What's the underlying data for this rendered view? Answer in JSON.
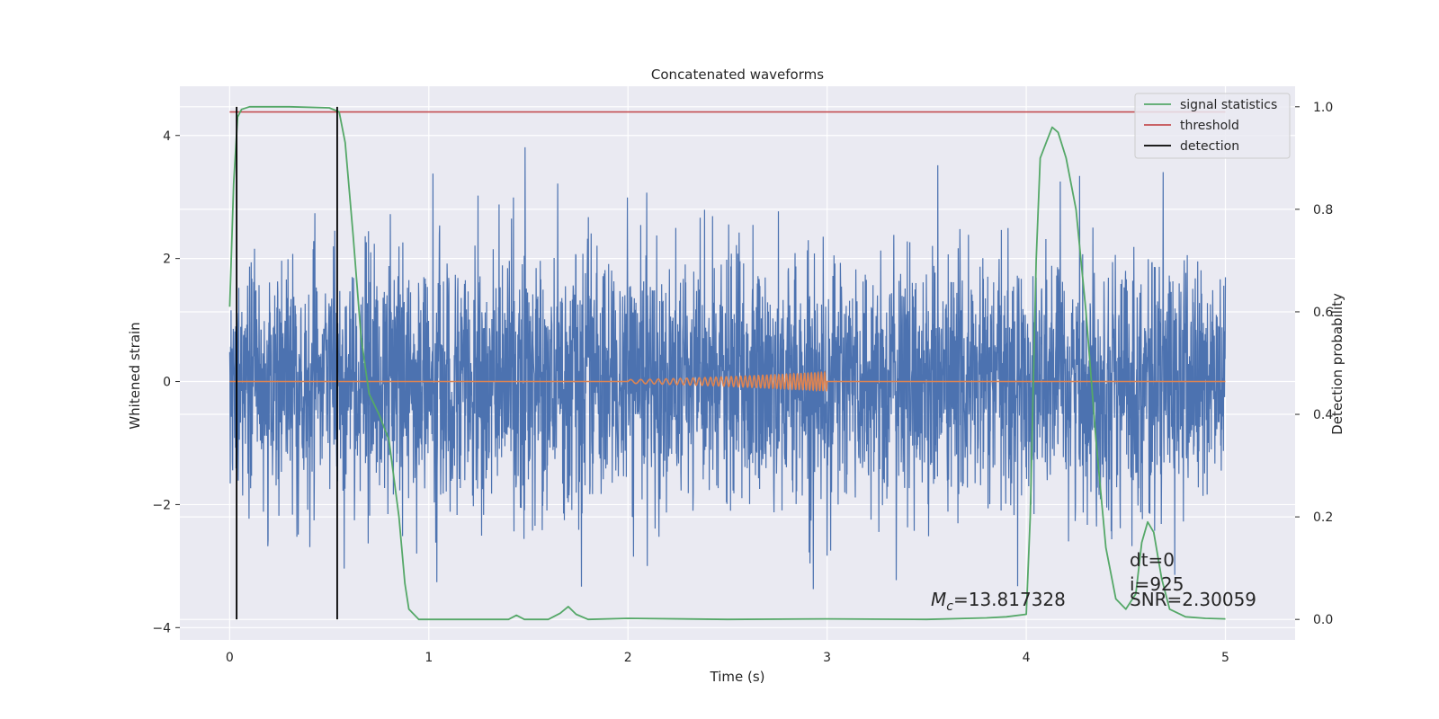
{
  "chart_data": {
    "type": "line",
    "title": "Concatenated waveforms",
    "xlabel": "Time (s)",
    "ylabel": "Whitened strain",
    "ylabel_right": "Detection probability",
    "xlim": [
      -0.25,
      5.35
    ],
    "ylim": [
      -4.2,
      4.8
    ],
    "ylim_right": [
      -0.04,
      1.04
    ],
    "xticks": [
      0,
      1,
      2,
      3,
      4,
      5
    ],
    "yticks": [
      -4,
      -2,
      0,
      2,
      4
    ],
    "yticks_right": [
      0.0,
      0.2,
      0.4,
      0.6,
      0.8,
      1.0
    ],
    "ytick_labels": [
      "−4",
      "−2",
      "0",
      "2",
      "4"
    ],
    "ytick_labels_right": [
      "0.0",
      "0.2",
      "0.4",
      "0.6",
      "0.8",
      "1.0"
    ],
    "grid": true,
    "legend_position": "top-right",
    "colors": {
      "strain": "#4c72b0",
      "template": "#dd8452",
      "statistics": "#55a868",
      "threshold": "#c44e52",
      "detection": "#000000",
      "background": "#eaeaf2",
      "grid": "#ffffff"
    },
    "series": [
      {
        "name": "",
        "axis": "left",
        "kind": "noise",
        "x_range": [
          0,
          5
        ],
        "approx_std": 1.0,
        "approx_range": [
          -3.85,
          4.4
        ]
      },
      {
        "name": "",
        "axis": "left",
        "kind": "chirp",
        "x_range": [
          2.0,
          3.0
        ],
        "amplitude_range": [
          0.03,
          0.15
        ]
      },
      {
        "name": "signal statistics",
        "axis": "right",
        "x": [
          0.0,
          0.02,
          0.04,
          0.06,
          0.1,
          0.3,
          0.5,
          0.55,
          0.58,
          0.62,
          0.66,
          0.7,
          0.75,
          0.8,
          0.85,
          0.88,
          0.9,
          0.95,
          1.0,
          1.4,
          1.44,
          1.48,
          1.6,
          1.66,
          1.7,
          1.74,
          1.8,
          2.0,
          2.5,
          3.0,
          3.5,
          3.8,
          3.9,
          4.0,
          4.02,
          4.05,
          4.07,
          4.1,
          4.13,
          4.16,
          4.2,
          4.25,
          4.3,
          4.35,
          4.4,
          4.45,
          4.5,
          4.55,
          4.58,
          4.61,
          4.64,
          4.68,
          4.72,
          4.8,
          4.9,
          5.0
        ],
        "y": [
          0.61,
          0.85,
          0.98,
          0.995,
          1.0,
          1.0,
          0.998,
          0.99,
          0.93,
          0.75,
          0.55,
          0.44,
          0.4,
          0.35,
          0.2,
          0.07,
          0.02,
          0.0,
          0.0,
          0.0,
          0.008,
          0.0,
          0.0,
          0.012,
          0.025,
          0.01,
          0.0,
          0.002,
          0.0,
          0.001,
          0.0,
          0.003,
          0.005,
          0.01,
          0.2,
          0.7,
          0.9,
          0.93,
          0.96,
          0.95,
          0.9,
          0.8,
          0.6,
          0.35,
          0.14,
          0.04,
          0.02,
          0.05,
          0.15,
          0.19,
          0.17,
          0.08,
          0.02,
          0.005,
          0.002,
          0.001
        ]
      },
      {
        "name": "threshold",
        "axis": "right",
        "x": [
          0.0,
          5.0
        ],
        "y": [
          0.99,
          0.99
        ]
      },
      {
        "name": "detection",
        "axis": "right",
        "kind": "vertical_lines",
        "x": [
          0.035,
          0.54
        ],
        "y_range": [
          0.0,
          1.0
        ]
      }
    ],
    "annotations": {
      "mc_label": "M",
      "mc_sub": "c",
      "mc_value": "=13.817328",
      "dt": "dt=0",
      "i": "i=925",
      "snr": "SNR=2.30059"
    }
  }
}
